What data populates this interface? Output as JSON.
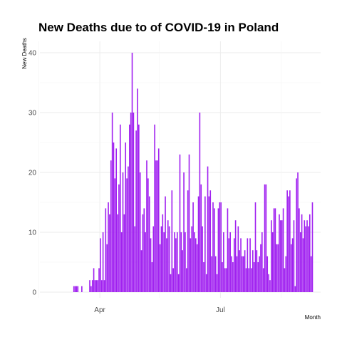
{
  "chart_data": {
    "type": "bar",
    "title": "New Deaths due to of COVID-19 in Poland",
    "xlabel": "Month",
    "ylabel": "New Deaths",
    "ylim": [
      0,
      42
    ],
    "y_ticks": [
      0,
      10,
      20,
      30,
      40
    ],
    "x_ticks": [
      "Apr",
      "Jul"
    ],
    "bar_color": "#a020f0",
    "grid": true,
    "x_start": "2020-03-04",
    "values": [
      0,
      0,
      0,
      0,
      0,
      0,
      0,
      0,
      1,
      1,
      1,
      1,
      0,
      0,
      1,
      0,
      0,
      0,
      0,
      0,
      2,
      1,
      2,
      4,
      2,
      2,
      2,
      4,
      9,
      2,
      10,
      2,
      14,
      8,
      15,
      13,
      22,
      30,
      25,
      19,
      24,
      13,
      18,
      28,
      10,
      20,
      13,
      25,
      19,
      21,
      28,
      30,
      40,
      30,
      11,
      27,
      34,
      28,
      20,
      7,
      13,
      14,
      10,
      22,
      19,
      16,
      9,
      5,
      11,
      28,
      22,
      22,
      24,
      8,
      11,
      13,
      10,
      16,
      9,
      12,
      11,
      3,
      17,
      4,
      10,
      9,
      10,
      3,
      23,
      10,
      7,
      20,
      10,
      4,
      17,
      23,
      9,
      11,
      15,
      10,
      9,
      8,
      16,
      30,
      18,
      11,
      5,
      16,
      3,
      21,
      16,
      17,
      6,
      15,
      14,
      6,
      3,
      14,
      15,
      15,
      5,
      10,
      4,
      4,
      14,
      9,
      10,
      6,
      5,
      9,
      12,
      6,
      11,
      7,
      9,
      6,
      6,
      7,
      4,
      9,
      4,
      9,
      4,
      7,
      5,
      15,
      7,
      5,
      6,
      8,
      10,
      4,
      18,
      18,
      6,
      3,
      2,
      12,
      10,
      14,
      14,
      8,
      8,
      13,
      12,
      12,
      14,
      4,
      6,
      17,
      16,
      17,
      8,
      9,
      12,
      1,
      19,
      20,
      14,
      10,
      13,
      9,
      12,
      11,
      12,
      11,
      13,
      6,
      15
    ]
  }
}
